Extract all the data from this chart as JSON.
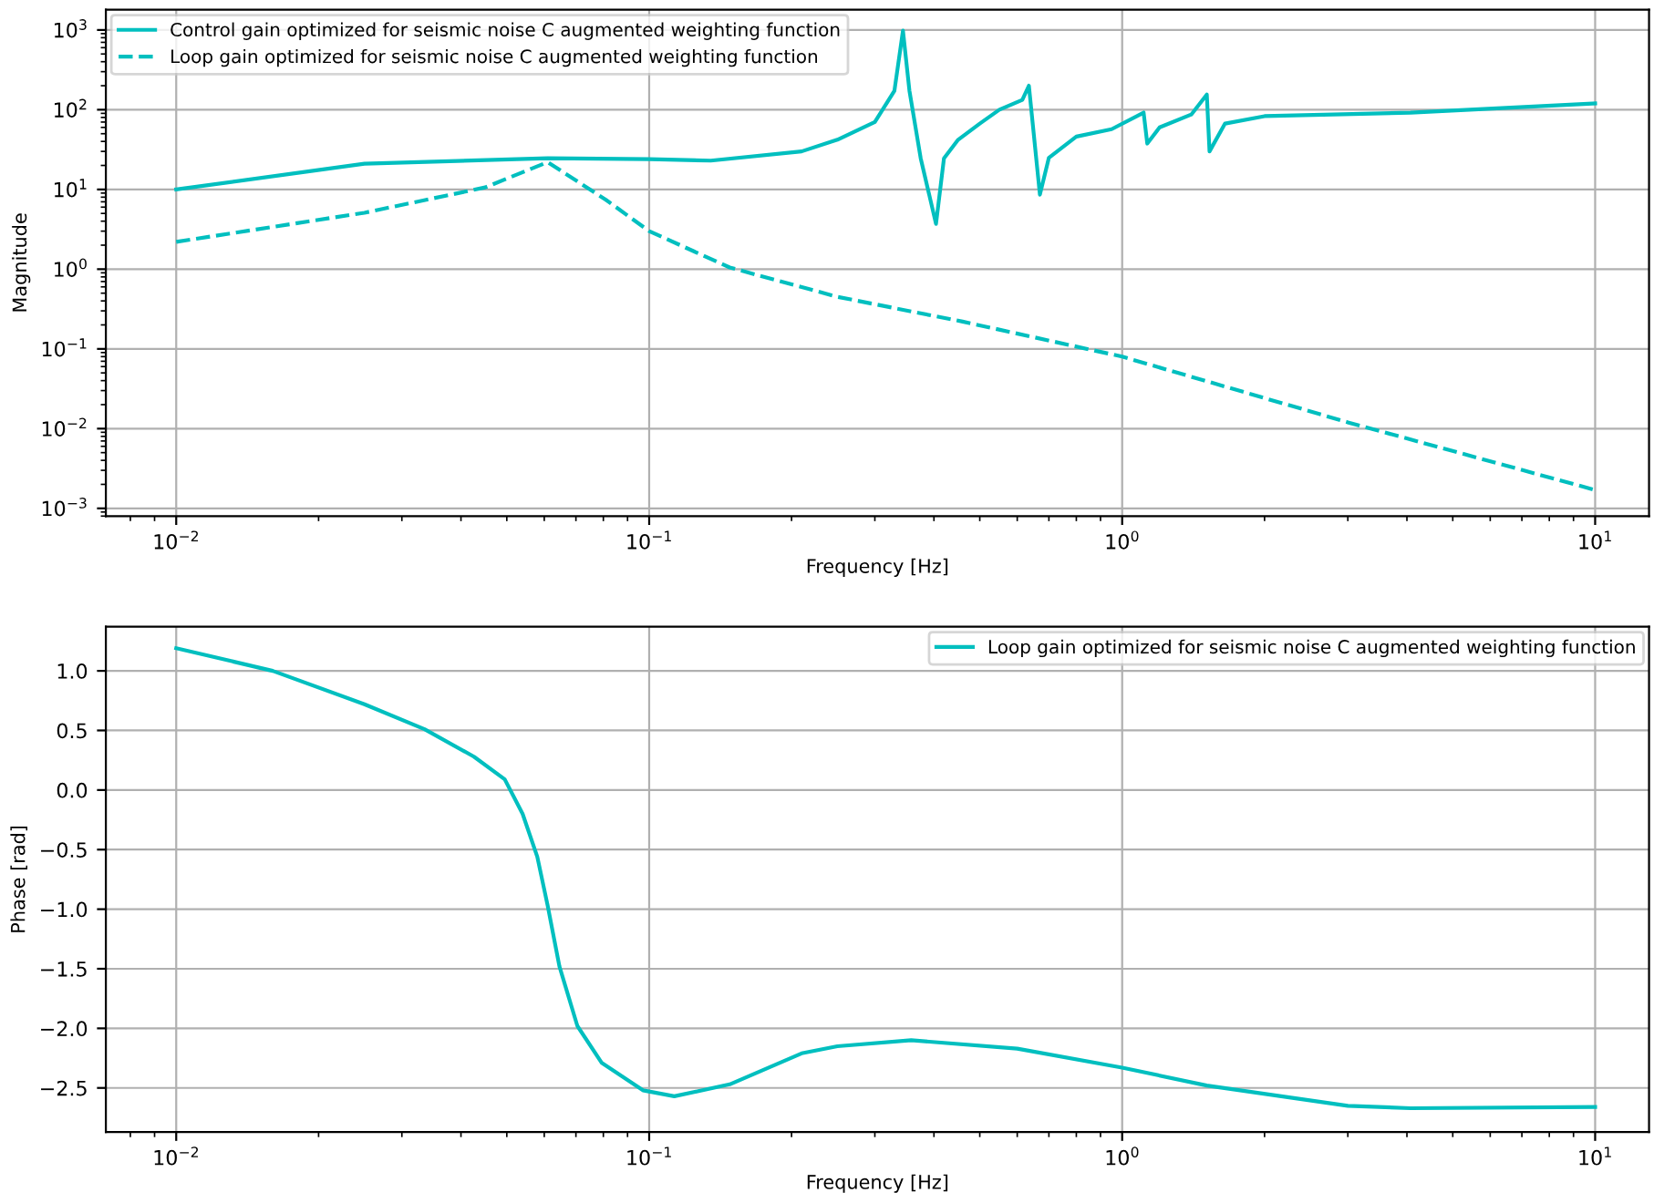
{
  "chart_data": [
    {
      "type": "line",
      "xlabel": "Frequency [Hz]",
      "ylabel": "Magnitude",
      "log": "xy",
      "grid": true,
      "legend": "top left",
      "xlim": [
        0.0071,
        13
      ],
      "ylim": [
        0.0008,
        1800
      ],
      "xticks": [
        {
          "value": 0.01,
          "label": "10$^{−2}$"
        },
        {
          "value": 0.1,
          "label": "10$^{−1}$"
        },
        {
          "value": 1,
          "label": "10$^{0}$"
        },
        {
          "value": 10,
          "label": "10$^{1}$"
        }
      ],
      "yticks": [
        {
          "value": 0.001,
          "label": "10$^{−3}$"
        },
        {
          "value": 0.01,
          "label": "10$^{−2}$"
        },
        {
          "value": 0.1,
          "label": "10$^{−1}$"
        },
        {
          "value": 1,
          "label": "10$^{0}$"
        },
        {
          "value": 10,
          "label": "10$^{1}$"
        },
        {
          "value": 100,
          "label": "10$^{2}$"
        },
        {
          "value": 1000,
          "label": "10$^{3}$"
        }
      ],
      "series": [
        {
          "name": "Control gain optimized for seismic noise C augmented weighting function",
          "color": "#00bfbf",
          "line_style": "solid",
          "x": [
            0.01,
            0.025,
            0.061,
            0.1,
            0.135,
            0.21,
            0.25,
            0.3,
            0.33,
            0.344,
            0.355,
            0.375,
            0.404,
            0.42,
            0.45,
            0.5,
            0.55,
            0.615,
            0.635,
            0.67,
            0.7,
            0.8,
            0.95,
            1.11,
            1.13,
            1.2,
            1.4,
            1.51,
            1.53,
            1.65,
            2.0,
            4.07,
            10
          ],
          "values": [
            10,
            21,
            24.6,
            24,
            23,
            30,
            42,
            70,
            173,
            980,
            173,
            24.6,
            3.7,
            24.6,
            42,
            67,
            100,
            133,
            200,
            8.6,
            25,
            46,
            57,
            92,
            37.6,
            60,
            87,
            155,
            30,
            67,
            83,
            92,
            120
          ]
        },
        {
          "name": "Loop gain optimized for seismic noise C augmented weighting function",
          "color": "#00bfbf",
          "line_style": "dashed",
          "x": [
            0.01,
            0.025,
            0.045,
            0.061,
            0.081,
            0.1,
            0.148,
            0.25,
            0.46,
            1,
            3,
            10
          ],
          "values": [
            2.2,
            5.1,
            10.6,
            22,
            7.4,
            3.0,
            1.05,
            0.45,
            0.22,
            0.08,
            0.012,
            0.0017
          ]
        }
      ]
    },
    {
      "type": "line",
      "xlabel": "Frequency [Hz]",
      "ylabel": "Phase [rad]",
      "log": "x",
      "grid": true,
      "legend": "top right",
      "xlim": [
        0.0071,
        13
      ],
      "ylim": [
        -2.87,
        1.37
      ],
      "xticks": [
        {
          "value": 0.01,
          "label": "10$^{−2}$"
        },
        {
          "value": 0.1,
          "label": "10$^{−1}$"
        },
        {
          "value": 1,
          "label": "10$^{0}$"
        },
        {
          "value": 10,
          "label": "10$^{1}$"
        }
      ],
      "yticks": [
        {
          "value": 1.0,
          "label": "1.0"
        },
        {
          "value": 0.5,
          "label": "0.5"
        },
        {
          "value": 0.0,
          "label": "0.0"
        },
        {
          "value": -0.5,
          "label": "−0.5"
        },
        {
          "value": -1.0,
          "label": "−1.0"
        },
        {
          "value": -1.5,
          "label": "−1.5"
        },
        {
          "value": -2.0,
          "label": "−2.0"
        },
        {
          "value": -2.5,
          "label": "−2.5"
        }
      ],
      "series": [
        {
          "name": "Loop gain optimized for seismic noise C augmented weighting function",
          "color": "#00bfbf",
          "line_style": "solid",
          "x": [
            0.01,
            0.016,
            0.025,
            0.0335,
            0.0426,
            0.0495,
            0.054,
            0.058,
            0.061,
            0.0646,
            0.0705,
            0.0794,
            0.097,
            0.113,
            0.148,
            0.21,
            0.25,
            0.358,
            0.6,
            1,
            1.51,
            3.0,
            4.07,
            10
          ],
          "values": [
            1.19,
            1.0,
            0.72,
            0.51,
            0.28,
            0.09,
            -0.2,
            -0.56,
            -0.97,
            -1.48,
            -1.98,
            -2.29,
            -2.52,
            -2.57,
            -2.47,
            -2.21,
            -2.15,
            -2.1,
            -2.17,
            -2.33,
            -2.48,
            -2.65,
            -2.67,
            -2.66
          ]
        }
      ]
    }
  ]
}
